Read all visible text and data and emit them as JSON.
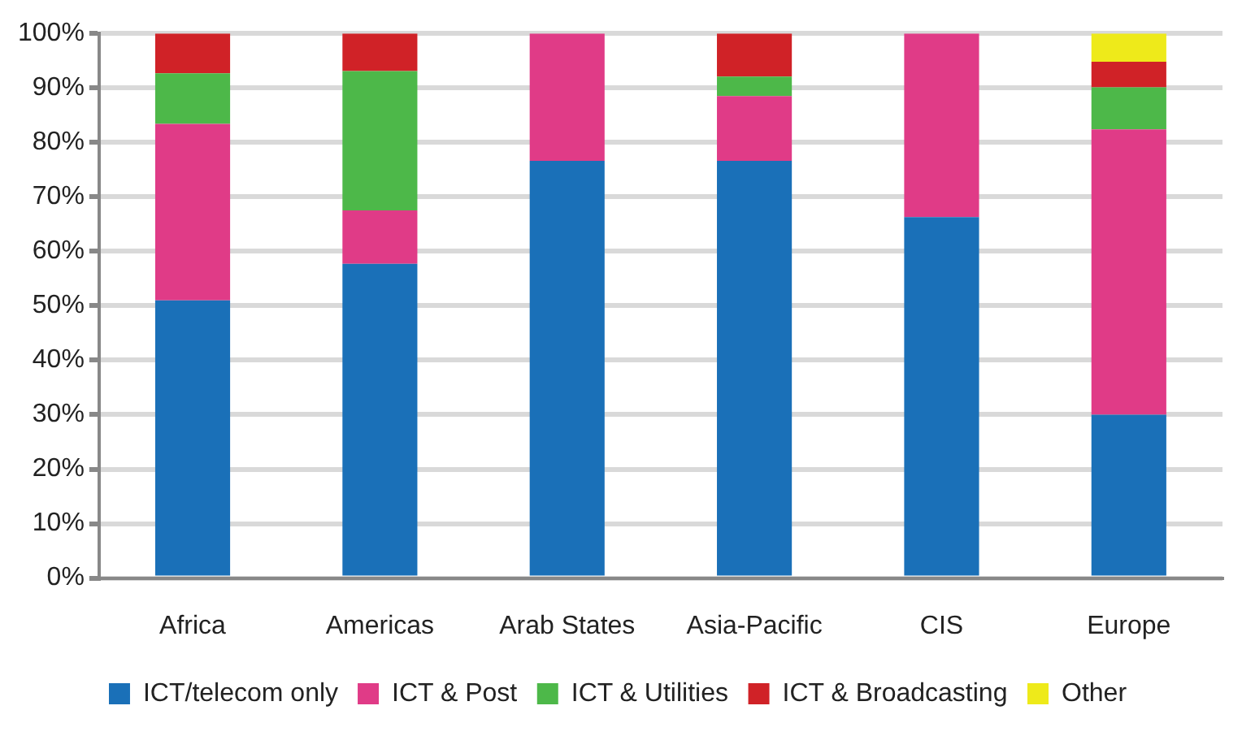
{
  "chart_data": {
    "type": "bar",
    "stacked": true,
    "categories": [
      "Africa",
      "Americas",
      "Arab States",
      "Asia-Pacific",
      "CIS",
      "Europe"
    ],
    "series": [
      {
        "name": "ICT/telecom only",
        "color": "#1a70b8",
        "values": [
          51,
          57.7,
          76.6,
          76.6,
          66.3,
          30
        ]
      },
      {
        "name": "ICT & Post",
        "color": "#e03b87",
        "values": [
          32.4,
          9.8,
          23.4,
          11.9,
          33.7,
          52.4
        ]
      },
      {
        "name": "ICT & Utilities",
        "color": "#4db849",
        "values": [
          9.3,
          25.6,
          0,
          3.6,
          0,
          7.7
        ]
      },
      {
        "name": "ICT & Broadcasting",
        "color": "#d02227",
        "values": [
          7.3,
          6.9,
          0,
          7.9,
          0,
          4.7
        ]
      },
      {
        "name": "Other",
        "color": "#eeea1a",
        "values": [
          0,
          0,
          0,
          0,
          0,
          5.2
        ]
      }
    ],
    "ylim": [
      0,
      100
    ],
    "yticks": [
      {
        "value": 0,
        "label": "0%"
      },
      {
        "value": 10,
        "label": "10%"
      },
      {
        "value": 20,
        "label": "20%"
      },
      {
        "value": 30,
        "label": "30%"
      },
      {
        "value": 40,
        "label": "40%"
      },
      {
        "value": 50,
        "label": "50%"
      },
      {
        "value": 60,
        "label": "60%"
      },
      {
        "value": 70,
        "label": "70%"
      },
      {
        "value": 80,
        "label": "80%"
      },
      {
        "value": 90,
        "label": "90%"
      },
      {
        "value": 100,
        "label": "100%"
      }
    ],
    "grid": "y",
    "legend": "bottom"
  }
}
